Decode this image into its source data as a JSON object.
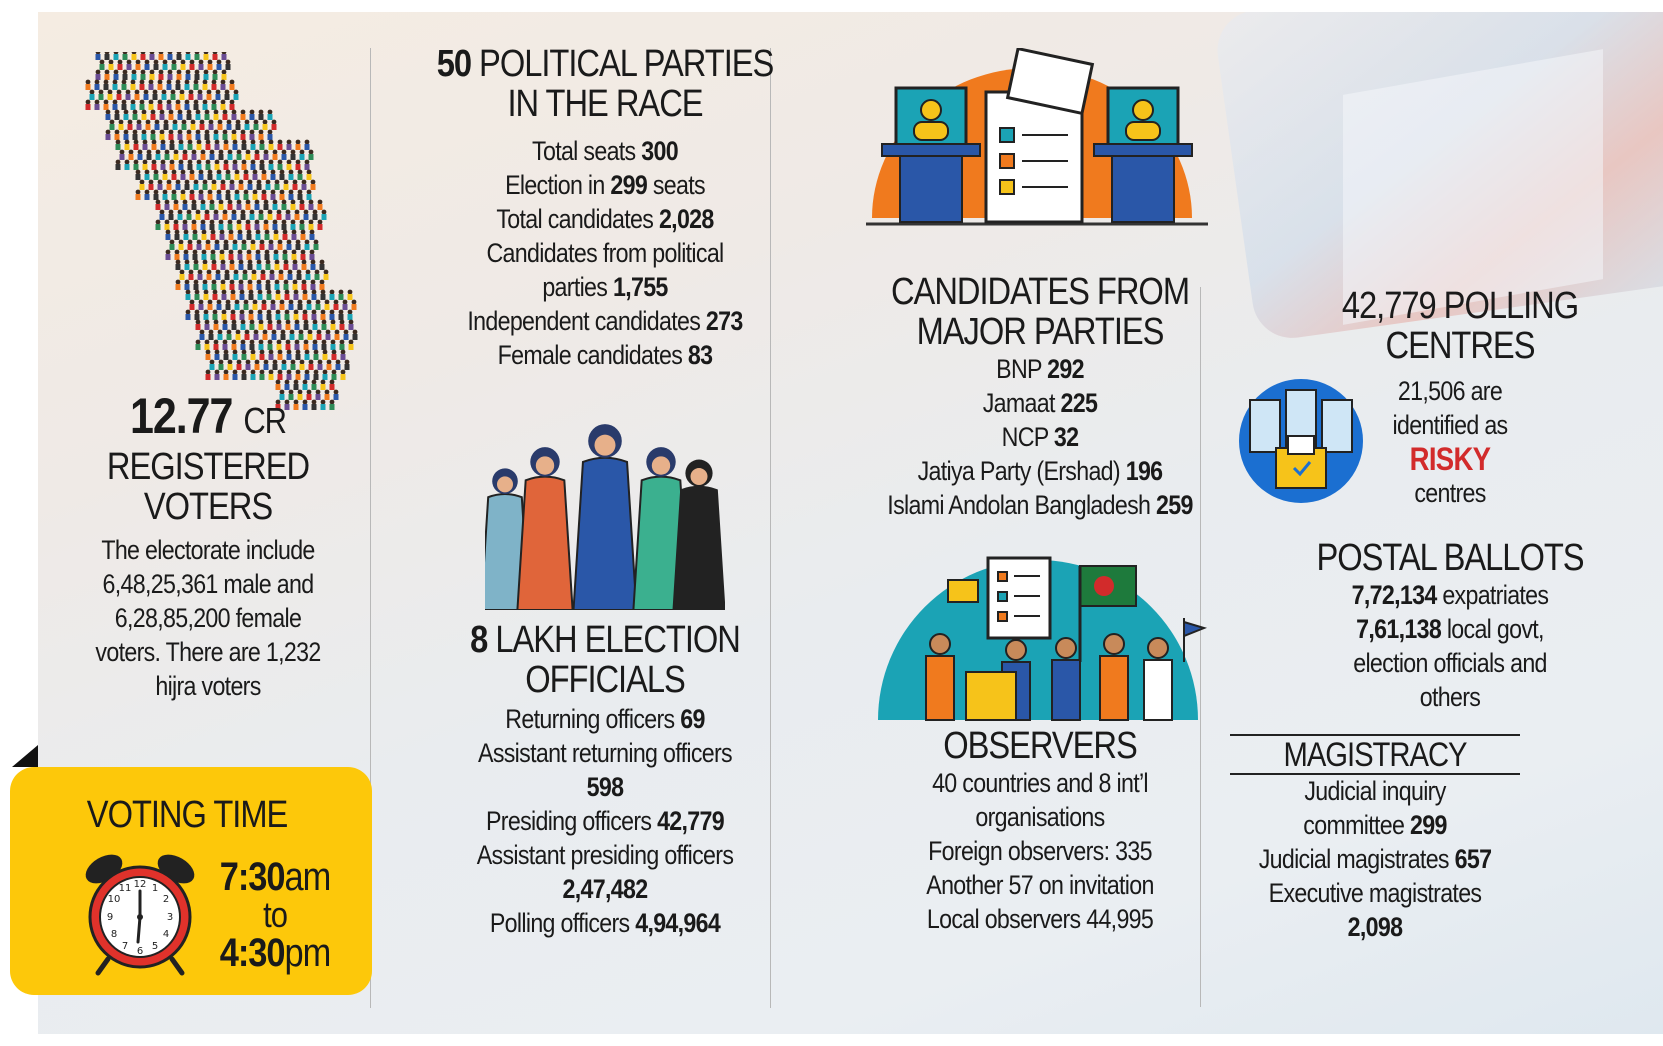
{
  "voters": {
    "number": "12.77",
    "unit": "CR",
    "title1": "REGISTERED",
    "title2": "VOTERS",
    "desc1": "The electorate include",
    "desc2": "6,48,25,361 male and",
    "desc3": "6,28,85,200 female",
    "desc4": "voters. There are 1,232",
    "desc5": "hijra voters"
  },
  "voting_time": {
    "title": "VOTING TIME",
    "start_num": "7:30",
    "start_unit": "am",
    "to": "to",
    "end_num": "4:30",
    "end_unit": "pm"
  },
  "parties": {
    "count": "50",
    "title1": "POLITICAL PARTIES",
    "title2": "IN THE RACE",
    "rows": [
      {
        "label": "Total seats",
        "value": "300"
      },
      {
        "label": "Election in",
        "value": "299",
        "suffix": "seats"
      },
      {
        "label": "Total candidates",
        "value": "2,028"
      },
      {
        "label": "Candidates from political",
        "value": ""
      },
      {
        "label": "parties",
        "value": "1,755"
      },
      {
        "label": "Independent candidates",
        "value": "273"
      },
      {
        "label": "Female candidates",
        "value": "83"
      }
    ]
  },
  "officials": {
    "count": "8",
    "title1": "LAKH ELECTION",
    "title2": "OFFICIALS",
    "rows": [
      {
        "label": "Returning officers",
        "value": "69"
      },
      {
        "label": "Assistant returning officers",
        "value": ""
      },
      {
        "label": "",
        "value": "598"
      },
      {
        "label": "Presiding officers",
        "value": "42,779"
      },
      {
        "label": "Assistant presiding officers",
        "value": ""
      },
      {
        "label": "",
        "value": "2,47,482"
      },
      {
        "label": "Polling officers",
        "value": "4,94,964"
      }
    ]
  },
  "major_parties": {
    "title1": "CANDIDATES FROM",
    "title2": "MAJOR PARTIES",
    "rows": [
      {
        "label": "BNP",
        "value": "292"
      },
      {
        "label": "Jamaat",
        "value": "225"
      },
      {
        "label": "NCP",
        "value": "32"
      },
      {
        "label": "Jatiya Party (Ershad)",
        "value": "196"
      },
      {
        "label": "Islami Andolan Bangladesh",
        "value": "259"
      }
    ]
  },
  "observers": {
    "title": "OBSERVERS",
    "lines": [
      "40 countries and 8 int’l",
      "organisations",
      "Foreign observers: 335",
      "Another 57 on invitation",
      "Local observers 44,995"
    ]
  },
  "polling": {
    "title1": "42,779 POLLING",
    "title2": "CENTRES",
    "risk1": "21,506 are",
    "risk2": "identified as",
    "risk3": "RISKY",
    "risk4": "centres"
  },
  "postal": {
    "title": "POSTAL BALLOTS",
    "row1_value": "7,72,134",
    "row1_label": "expatriates",
    "row2_value": "7,61,138",
    "row2_label": "local govt,",
    "row3": "election officials and",
    "row4": "others"
  },
  "magistracy": {
    "title": "MAGISTRACY",
    "line1": "Judicial inquiry",
    "line2_label": "committee",
    "line2_value": "299",
    "line3_label": "Judicial magistrates",
    "line3_value": "657",
    "line4": "Executive magistrates",
    "line5": "2,098"
  },
  "colors": {
    "accent_yellow": "#fdc80a",
    "orange": "#f07a1e",
    "teal": "#1ba3b5",
    "risky_red": "#d22b2b",
    "blue": "#2a57a8"
  }
}
